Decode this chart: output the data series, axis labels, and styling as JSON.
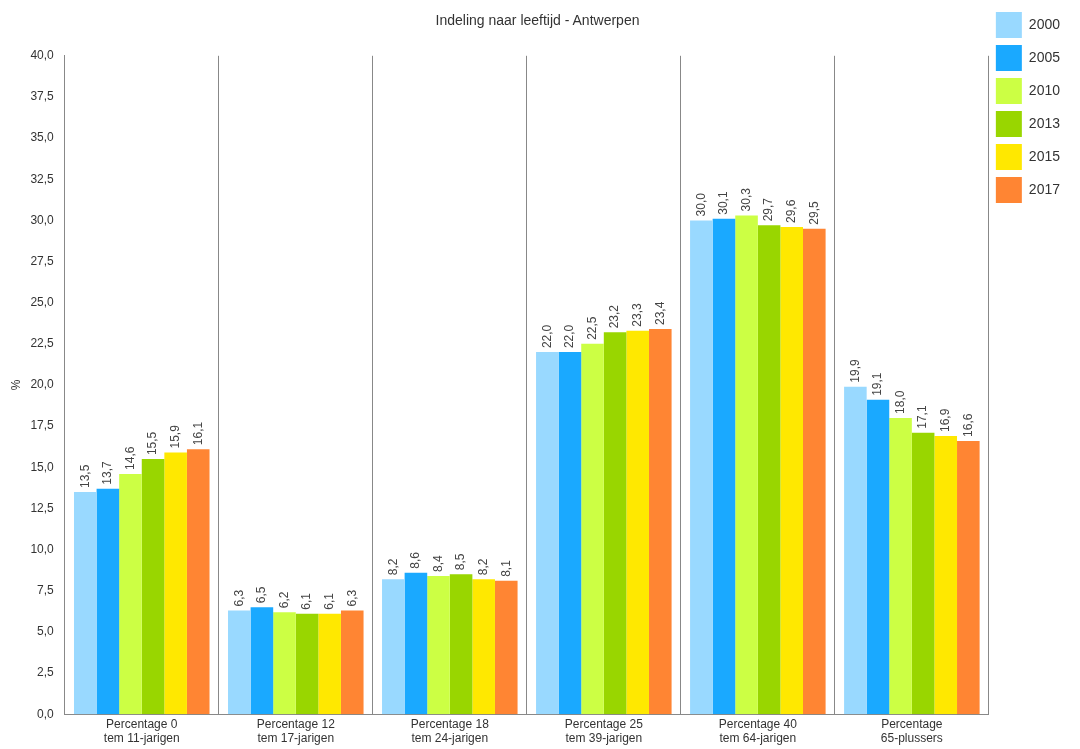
{
  "chart_data": {
    "type": "bar",
    "title": "Indeling naar leeftijd - Antwerpen",
    "ylabel": "%",
    "categories": [
      "Percentage 0\ntem 11-jarigen",
      "Percentage 12\ntem 17-jarigen",
      "Percentage 18\ntem 24-jarigen",
      "Percentage 25\ntem 39-jarigen",
      "Percentage 40\ntem 64-jarigen",
      "Percentage\n65-plussers"
    ],
    "series": [
      {
        "name": "2000",
        "color": "#99d9ff",
        "values": [
          13.5,
          6.3,
          8.2,
          22.0,
          30.0,
          19.9
        ],
        "value_labels": [
          "13,5",
          "6,3",
          "8,2",
          "22,0",
          "30,0",
          "19,9"
        ]
      },
      {
        "name": "2005",
        "color": "#1aa9ff",
        "values": [
          13.7,
          6.5,
          8.6,
          22.0,
          30.1,
          19.1
        ],
        "value_labels": [
          "13,7",
          "6,5",
          "8,6",
          "22,0",
          "30,1",
          "19,1"
        ]
      },
      {
        "name": "2010",
        "color": "#ccff44",
        "values": [
          14.6,
          6.2,
          8.4,
          22.5,
          30.3,
          18.0
        ],
        "value_labels": [
          "14,6",
          "6,2",
          "8,4",
          "22,5",
          "30,3",
          "18,0"
        ]
      },
      {
        "name": "2013",
        "color": "#99d600",
        "values": [
          15.5,
          6.1,
          8.5,
          23.2,
          29.7,
          17.1
        ],
        "value_labels": [
          "15,5",
          "6,1",
          "8,5",
          "23,2",
          "29,7",
          "17,1"
        ]
      },
      {
        "name": "2015",
        "color": "#ffe800",
        "values": [
          15.9,
          6.1,
          8.2,
          23.3,
          29.6,
          16.9
        ],
        "value_labels": [
          "15,9",
          "6,1",
          "8,2",
          "23,3",
          "29,6",
          "16,9"
        ]
      },
      {
        "name": "2017",
        "color": "#ff8533",
        "values": [
          16.1,
          6.3,
          8.1,
          23.4,
          29.5,
          16.6
        ],
        "value_labels": [
          "16,1",
          "6,3",
          "8,1",
          "23,4",
          "29,5",
          "16,6"
        ]
      }
    ],
    "ylim": [
      0,
      40
    ],
    "yticks": [
      {
        "value": 0,
        "label": "0,0"
      },
      {
        "value": 2.5,
        "label": "2,5"
      },
      {
        "value": 5,
        "label": "5,0"
      },
      {
        "value": 7.5,
        "label": "7,5"
      },
      {
        "value": 10,
        "label": "10,0"
      },
      {
        "value": 12.5,
        "label": "12,5"
      },
      {
        "value": 15,
        "label": "15,0"
      },
      {
        "value": 17.5,
        "label": "17,5"
      },
      {
        "value": 20,
        "label": "20,0"
      },
      {
        "value": 22.5,
        "label": "22,5"
      },
      {
        "value": 25,
        "label": "25,0"
      },
      {
        "value": 27.5,
        "label": "27,5"
      },
      {
        "value": 30,
        "label": "30,0"
      },
      {
        "value": 32.5,
        "label": "32,5"
      },
      {
        "value": 35,
        "label": "35,0"
      },
      {
        "value": 37.5,
        "label": "37,5"
      },
      {
        "value": 40,
        "label": "40,0"
      }
    ],
    "grid": "x",
    "legend": "top right"
  }
}
